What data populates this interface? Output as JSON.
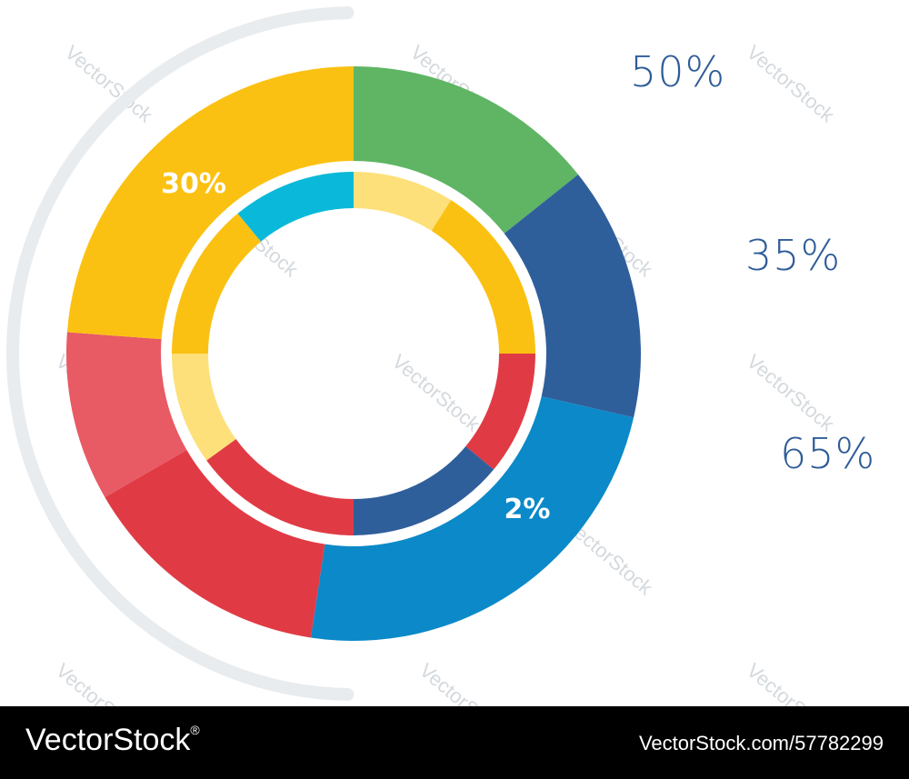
{
  "colors": {
    "green": "#5fb564",
    "navy": "#2f5f9b",
    "blue": "#0b89c8",
    "red": "#e03b45",
    "pink": "#e85a64",
    "yellow": "#fbc112",
    "light_yellow": "#fde07a",
    "cyan": "#0ab9d9",
    "label_text": "#2f5c98",
    "arc": "#e8ecef",
    "watermark": "#d4d9dd"
  },
  "chart_data": {
    "type": "donut",
    "outer_ring": [
      {
        "value": 15,
        "color": "green"
      },
      {
        "value": 15,
        "color": "navy"
      },
      {
        "value": 25,
        "color": "blue"
      },
      {
        "value": 15,
        "color": "red"
      },
      {
        "value": 10,
        "color": "pink"
      },
      {
        "value": 25,
        "color": "yellow"
      }
    ],
    "inner_ring": [
      {
        "value": 9,
        "color": "light_yellow"
      },
      {
        "value": 16,
        "color": "yellow"
      },
      {
        "value": 11,
        "color": "red"
      },
      {
        "value": 14,
        "color": "navy"
      },
      {
        "value": 15,
        "color": "red"
      },
      {
        "value": 10,
        "color": "light_yellow"
      },
      {
        "value": 14,
        "color": "yellow"
      },
      {
        "value": 11,
        "color": "cyan"
      }
    ],
    "slice_labels": [
      {
        "text": "30%",
        "ring": "outer",
        "at_value": 90
      },
      {
        "text": "2%",
        "ring": "outer",
        "at_value": 41
      }
    ],
    "side_labels": [
      "50%",
      "35%",
      "65%"
    ]
  },
  "watermark": "VectorStock",
  "footer": {
    "brand": "VectorStock",
    "registered": "®",
    "image_id": "VectorStock.com/57782299"
  }
}
